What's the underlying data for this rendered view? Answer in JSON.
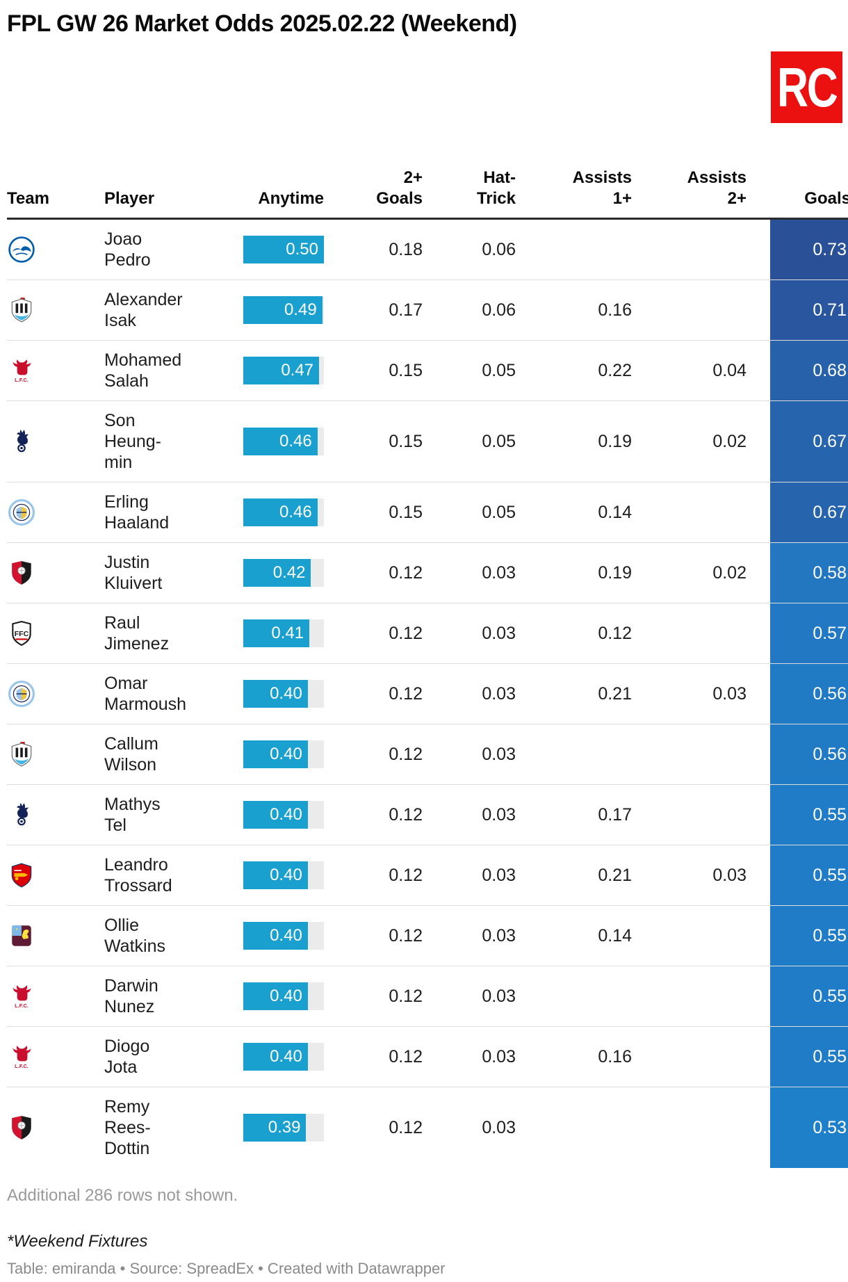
{
  "title": "FPL GW 26 Market Odds 2025.02.22 (Weekend)",
  "logo": {
    "text": "RC",
    "bg": "#ec1111",
    "fg": "#ffffff"
  },
  "styles": {
    "bar_fill": "#19a0ce",
    "bar_track": "#ebebeb",
    "bar_value_text": "#ffffff",
    "goals_value_text": "#ffffff",
    "header_rule": "#2b2b2b",
    "row_border": "#dddddd"
  },
  "chart_data": {
    "type": "table",
    "title": "FPL GW 26 Market Odds 2025.02.22 (Weekend)",
    "columns": [
      {
        "id": "team",
        "label": "Team",
        "header_lines": [
          "Team"
        ],
        "align": "left"
      },
      {
        "id": "player",
        "label": "Player",
        "header_lines": [
          "Player"
        ],
        "align": "left"
      },
      {
        "id": "anytime",
        "label": "Anytime",
        "header_lines": [
          "Anytime"
        ],
        "align": "right",
        "format": "bar",
        "bar_max": 0.5
      },
      {
        "id": "goals_2plus",
        "label": "2+ Goals",
        "header_lines": [
          "2+",
          "Goals"
        ],
        "align": "right"
      },
      {
        "id": "hat_trick",
        "label": "Hat-Trick",
        "header_lines": [
          "Hat-",
          "Trick"
        ],
        "align": "right"
      },
      {
        "id": "assists_1plus",
        "label": "Assists 1+",
        "header_lines": [
          "Assists",
          "1+"
        ],
        "align": "right"
      },
      {
        "id": "assists_2plus",
        "label": "Assists 2+",
        "header_lines": [
          "Assists",
          "2+"
        ],
        "align": "right"
      },
      {
        "id": "goals",
        "label": "Goals",
        "header_lines": [
          "Goals"
        ],
        "align": "right",
        "format": "heatmap"
      }
    ],
    "rows": [
      {
        "team": "brighton",
        "player_lines": [
          "Joao",
          "Pedro"
        ],
        "anytime": 0.5,
        "goals_2plus": 0.18,
        "hat_trick": 0.06,
        "assists_1plus": null,
        "assists_2plus": null,
        "goals": 0.73,
        "goals_color": "#2a5198"
      },
      {
        "team": "newcastle",
        "player_lines": [
          "Alexander",
          "Isak"
        ],
        "anytime": 0.49,
        "goals_2plus": 0.17,
        "hat_trick": 0.06,
        "assists_1plus": 0.16,
        "assists_2plus": null,
        "goals": 0.71,
        "goals_color": "#29569e"
      },
      {
        "team": "liverpool",
        "player_lines": [
          "Mohamed",
          "Salah"
        ],
        "anytime": 0.47,
        "goals_2plus": 0.15,
        "hat_trick": 0.05,
        "assists_1plus": 0.22,
        "assists_2plus": 0.04,
        "goals": 0.68,
        "goals_color": "#2761a9"
      },
      {
        "team": "tottenham",
        "player_lines": [
          "Son",
          "Heung-",
          "min"
        ],
        "anytime": 0.46,
        "goals_2plus": 0.15,
        "hat_trick": 0.05,
        "assists_1plus": 0.19,
        "assists_2plus": 0.02,
        "goals": 0.67,
        "goals_color": "#2664ad"
      },
      {
        "team": "mancity",
        "player_lines": [
          "Erling",
          "Haaland"
        ],
        "anytime": 0.46,
        "goals_2plus": 0.15,
        "hat_trick": 0.05,
        "assists_1plus": 0.14,
        "assists_2plus": null,
        "goals": 0.67,
        "goals_color": "#2664ad"
      },
      {
        "team": "bournemouth",
        "player_lines": [
          "Justin",
          "Kluivert"
        ],
        "anytime": 0.42,
        "goals_2plus": 0.12,
        "hat_trick": 0.03,
        "assists_1plus": 0.19,
        "assists_2plus": 0.02,
        "goals": 0.58,
        "goals_color": "#2376c0"
      },
      {
        "team": "fulham",
        "player_lines": [
          "Raul",
          "Jimenez"
        ],
        "anytime": 0.41,
        "goals_2plus": 0.12,
        "hat_trick": 0.03,
        "assists_1plus": 0.12,
        "assists_2plus": null,
        "goals": 0.57,
        "goals_color": "#2278c2"
      },
      {
        "team": "mancity",
        "player_lines": [
          "Omar",
          "Marmoush"
        ],
        "anytime": 0.4,
        "goals_2plus": 0.12,
        "hat_trick": 0.03,
        "assists_1plus": 0.21,
        "assists_2plus": 0.03,
        "goals": 0.56,
        "goals_color": "#217ac4"
      },
      {
        "team": "newcastle",
        "player_lines": [
          "Callum",
          "Wilson"
        ],
        "anytime": 0.4,
        "goals_2plus": 0.12,
        "hat_trick": 0.03,
        "assists_1plus": null,
        "assists_2plus": null,
        "goals": 0.56,
        "goals_color": "#217ac4"
      },
      {
        "team": "tottenham",
        "player_lines": [
          "Mathys",
          "Tel"
        ],
        "anytime": 0.4,
        "goals_2plus": 0.12,
        "hat_trick": 0.03,
        "assists_1plus": 0.17,
        "assists_2plus": null,
        "goals": 0.55,
        "goals_color": "#207cc6"
      },
      {
        "team": "arsenal",
        "player_lines": [
          "Leandro",
          "Trossard"
        ],
        "anytime": 0.4,
        "goals_2plus": 0.12,
        "hat_trick": 0.03,
        "assists_1plus": 0.21,
        "assists_2plus": 0.03,
        "goals": 0.55,
        "goals_color": "#207cc6"
      },
      {
        "team": "astonvilla",
        "player_lines": [
          "Ollie",
          "Watkins"
        ],
        "anytime": 0.4,
        "goals_2plus": 0.12,
        "hat_trick": 0.03,
        "assists_1plus": 0.14,
        "assists_2plus": null,
        "goals": 0.55,
        "goals_color": "#207cc6"
      },
      {
        "team": "liverpool",
        "player_lines": [
          "Darwin",
          "Nunez"
        ],
        "anytime": 0.4,
        "goals_2plus": 0.12,
        "hat_trick": 0.03,
        "assists_1plus": null,
        "assists_2plus": null,
        "goals": 0.55,
        "goals_color": "#207cc6"
      },
      {
        "team": "liverpool",
        "player_lines": [
          "Diogo",
          "Jota"
        ],
        "anytime": 0.4,
        "goals_2plus": 0.12,
        "hat_trick": 0.03,
        "assists_1plus": 0.16,
        "assists_2plus": null,
        "goals": 0.55,
        "goals_color": "#207cc6"
      },
      {
        "team": "bournemouth",
        "player_lines": [
          "Remy",
          "Rees-",
          "Dottin"
        ],
        "anytime": 0.39,
        "goals_2plus": 0.12,
        "hat_trick": 0.03,
        "assists_1plus": null,
        "assists_2plus": null,
        "goals": 0.53,
        "goals_color": "#1f80ca"
      }
    ]
  },
  "teams": {
    "brighton": {
      "name": "Brighton & Hove Albion",
      "primary": "#005daa",
      "secondary": "#ffffff",
      "tertiary": "#005daa"
    },
    "newcastle": {
      "name": "Newcastle United",
      "primary": "#1c1c1c",
      "secondary": "#ffffff",
      "tertiary": "#41b6e6"
    },
    "liverpool": {
      "name": "Liverpool",
      "primary": "#c8102e",
      "secondary": "#ffffff",
      "tertiary": "#c8102e"
    },
    "tottenham": {
      "name": "Tottenham Hotspur",
      "primary": "#132257",
      "secondary": "#ffffff",
      "tertiary": "#132257"
    },
    "mancity": {
      "name": "Manchester City",
      "primary": "#98c5e9",
      "secondary": "#1c2c5b",
      "tertiary": "#f0c641"
    },
    "bournemouth": {
      "name": "AFC Bournemouth",
      "primary": "#d2122e",
      "secondary": "#1a1a1a",
      "tertiary": "#ffffff"
    },
    "fulham": {
      "name": "Fulham",
      "primary": "#1a1a1a",
      "secondary": "#ffffff",
      "tertiary": "#cc0000"
    },
    "arsenal": {
      "name": "Arsenal",
      "primary": "#db0007",
      "secondary": "#f9b800",
      "tertiary": "#063672"
    },
    "astonvilla": {
      "name": "Aston Villa",
      "primary": "#5e1b33",
      "secondary": "#7db9e8",
      "tertiary": "#fde13d"
    }
  },
  "footer": {
    "note": "Additional 286 rows not shown.",
    "fixtures": "*Weekend Fixtures",
    "byline": "Table: emiranda • Source: SpreadEx • Created with Datawrapper"
  }
}
